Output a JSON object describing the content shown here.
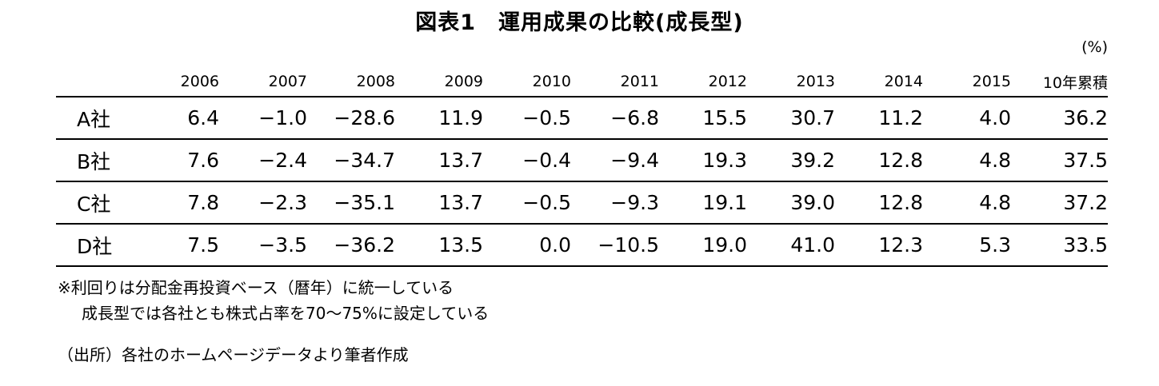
{
  "title": "図表1　運用成果の比較(成長型)",
  "unit": "(%)",
  "chart_data": {
    "type": "table",
    "title": "図表1　運用成果の比較(成長型)",
    "columns": [
      "2006",
      "2007",
      "2008",
      "2009",
      "2010",
      "2011",
      "2012",
      "2013",
      "2014",
      "2015",
      "10年累積"
    ],
    "rows": [
      {
        "label": "A社",
        "values": [
          "6.4",
          "−1.0",
          "−28.6",
          "11.9",
          "−0.5",
          "−6.8",
          "15.5",
          "30.7",
          "11.2",
          "4.0",
          "36.2"
        ]
      },
      {
        "label": "B社",
        "values": [
          "7.6",
          "−2.4",
          "−34.7",
          "13.7",
          "−0.4",
          "−9.4",
          "19.3",
          "39.2",
          "12.8",
          "4.8",
          "37.5"
        ]
      },
      {
        "label": "C社",
        "values": [
          "7.8",
          "−2.3",
          "−35.1",
          "13.7",
          "−0.5",
          "−9.3",
          "19.1",
          "39.0",
          "12.8",
          "4.8",
          "37.2"
        ]
      },
      {
        "label": "D社",
        "values": [
          "7.5",
          "−3.5",
          "−36.2",
          "13.5",
          "0.0",
          "−10.5",
          "19.0",
          "41.0",
          "12.3",
          "5.3",
          "33.5"
        ]
      }
    ]
  },
  "notes": [
    "※利回りは分配金再投資ベース（暦年）に統一している",
    "成長型では各社とも株式占率を70～75%に設定している"
  ],
  "source": "（出所）各社のホームページデータより筆者作成"
}
